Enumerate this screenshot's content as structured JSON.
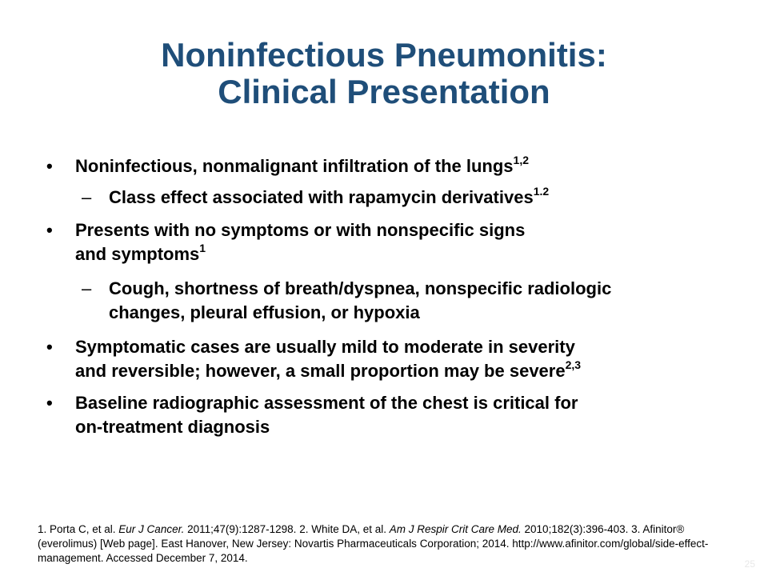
{
  "slide": {
    "title_line1": "Noninfectious Pneumonitis:",
    "title_line2": "Clinical Presentation",
    "bullets": [
      {
        "marker": "•",
        "text": "Noninfectious, nonmalignant infiltration of the lungs",
        "sup": "1,2"
      },
      {
        "marker": "–",
        "text": "Class effect associated with rapamycin derivatives",
        "sup": "1.2"
      },
      {
        "marker": "•",
        "line1": "Presents with no symptoms or with nonspecific signs",
        "line2": "and symptoms",
        "sup": "1"
      },
      {
        "marker": "–",
        "line1": "Cough, shortness of breath/dyspnea, nonspecific radiologic",
        "line2": "changes, pleural effusion, or hypoxia"
      },
      {
        "marker": "•",
        "line1": "Symptomatic cases are usually mild to moderate in severity",
        "line2": "and reversible; however, a small proportion may be severe",
        "sup": "2,3"
      },
      {
        "marker": "•",
        "line1": "Baseline radiographic assessment of the chest is critical for",
        "line2": "on-treatment diagnosis"
      }
    ],
    "references": {
      "r1_pre": "1. Porta C, et al. ",
      "r1_journal": "Eur J Cancer.",
      "r1_post": " 2011;47(9):1287-1298. 2. White DA, et al. ",
      "r2_journal": "Am J Respir Crit Care Med.",
      "r2_post": " 2010;182(3):396-403. 3. Afinitor® (everolimus)  [Web page]. East Hanover,  New Jersey: Novartis Pharmaceuticals Corporation; 2014. http://www.afinitor.com/global/side-effect-management.  Accessed December 7, 2014."
    },
    "page_number": "25"
  },
  "colors": {
    "title": "#1f4e79",
    "text": "#000000",
    "background": "#ffffff"
  }
}
